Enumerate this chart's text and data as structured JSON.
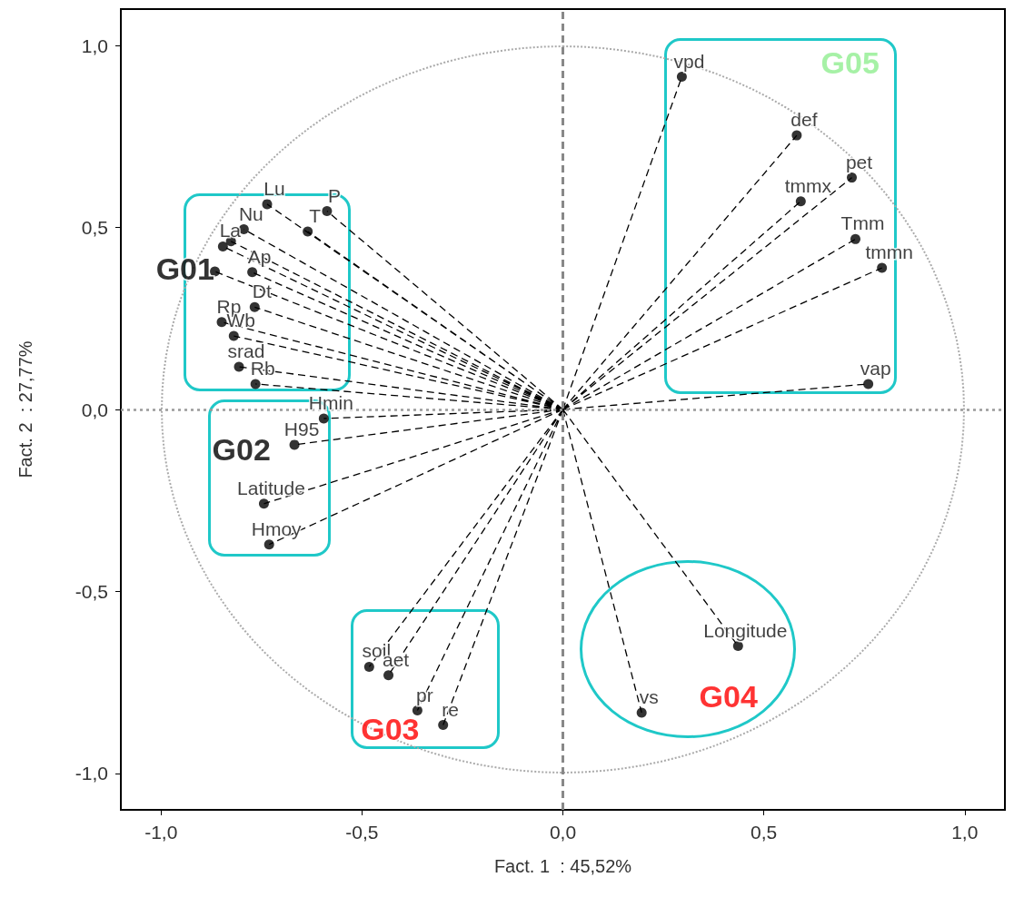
{
  "chart_data": {
    "type": "scatter",
    "xlabel": "Fact. 1  : 45,52%",
    "ylabel": "Fact. 2  : 27,77%",
    "xlim": [
      -1.1,
      1.1
    ],
    "ylim": [
      -1.1,
      1.1
    ],
    "xticks": [
      {
        "value": -1,
        "label": "-1,0"
      },
      {
        "value": -0.5,
        "label": "-0,5"
      },
      {
        "value": 0,
        "label": "0,0"
      },
      {
        "value": 0.5,
        "label": "0,5"
      },
      {
        "value": 1,
        "label": "1,0"
      }
    ],
    "yticks": [
      {
        "value": -1,
        "label": "-1,0"
      },
      {
        "value": -0.5,
        "label": "-0,5"
      },
      {
        "value": 0,
        "label": "0,0"
      },
      {
        "value": 0.5,
        "label": "0,5"
      },
      {
        "value": 1,
        "label": "1,0"
      }
    ],
    "grid": false,
    "ref_lines": [
      {
        "axis": "x",
        "value": 0,
        "color": "#888888",
        "line_style": "dashed"
      },
      {
        "axis": "y",
        "value": 0,
        "color": "#999999",
        "line_style": "dotted"
      }
    ],
    "series": [
      {
        "type": "line",
        "color": "#000000",
        "line_style": "dashed",
        "x": [
          0,
          -0.736,
          null,
          0,
          -0.587,
          null,
          0,
          -0.635,
          null,
          0,
          -0.794,
          null,
          0,
          -0.826,
          null,
          0,
          -0.846,
          null,
          0,
          -0.866,
          null,
          0,
          -0.773,
          null,
          0,
          -0.767,
          null,
          0,
          -0.849,
          null,
          0,
          -0.819,
          null,
          0,
          -0.806,
          null,
          0,
          -0.765,
          null,
          0,
          -0.595,
          null,
          0,
          -0.668,
          null,
          0,
          -0.744,
          null,
          0,
          -0.731,
          null,
          0,
          -0.482,
          null,
          0,
          -0.434,
          null,
          0,
          -0.362,
          null,
          0,
          -0.298,
          null,
          0,
          0.196,
          null,
          0,
          0.436,
          null,
          0,
          0.296,
          null,
          0,
          0.582,
          null,
          0,
          0.719,
          null,
          0,
          0.592,
          null,
          0,
          0.728,
          null,
          0,
          0.794,
          null,
          0,
          0.76
        ],
        "values": [
          0,
          0.564,
          null,
          0,
          0.545,
          null,
          0,
          0.489,
          null,
          0,
          0.495,
          null,
          0,
          0.462,
          null,
          0,
          0.448,
          null,
          0,
          0.379,
          null,
          0,
          0.377,
          null,
          0,
          0.281,
          null,
          0,
          0.24,
          null,
          0,
          0.202,
          null,
          0,
          0.117,
          null,
          0,
          0.07,
          null,
          0,
          -0.025,
          null,
          0,
          -0.097,
          null,
          0,
          -0.259,
          null,
          0,
          -0.371,
          null,
          0,
          -0.707,
          null,
          0,
          -0.73,
          null,
          0,
          -0.827,
          null,
          0,
          -0.867,
          null,
          0,
          -0.833,
          null,
          0,
          -0.65,
          null,
          0,
          0.914,
          null,
          0,
          0.753,
          null,
          0,
          0.637,
          null,
          0,
          0.572,
          null,
          0,
          0.468,
          null,
          0,
          0.389,
          null,
          0,
          0.07
        ]
      },
      {
        "color": "#000000",
        "marker": "circle",
        "x": [
          -0.736,
          -0.587,
          -0.635,
          -0.794,
          -0.826,
          -0.846,
          -0.866,
          -0.773,
          -0.767,
          -0.849,
          -0.819,
          -0.806,
          -0.765,
          -0.595,
          -0.668,
          -0.744,
          -0.731,
          -0.482,
          -0.434,
          -0.362,
          -0.298,
          0.196,
          0.436,
          0.296,
          0.582,
          0.719,
          0.592,
          0.728,
          0.794,
          0.76
        ],
        "values": [
          0.564,
          0.545,
          0.489,
          0.495,
          0.462,
          0.448,
          0.379,
          0.377,
          0.281,
          0.24,
          0.202,
          0.117,
          0.07,
          -0.025,
          -0.097,
          -0.259,
          -0.371,
          -0.707,
          -0.73,
          -0.827,
          -0.867,
          -0.833,
          -0.65,
          0.914,
          0.753,
          0.637,
          0.572,
          0.468,
          0.389,
          0.07
        ]
      }
    ],
    "annotations": [
      {
        "text": "Lu",
        "x": -0.736,
        "y": 0.564
      },
      {
        "text": "P",
        "x": -0.587,
        "y": 0.545
      },
      {
        "text": "T",
        "x": -0.635,
        "y": 0.489
      },
      {
        "text": "Nu",
        "x": -0.794,
        "y": 0.495
      },
      {
        "text": "La",
        "x": -0.846,
        "y": 0.448
      },
      {
        "text": "Ap",
        "x": -0.773,
        "y": 0.377
      },
      {
        "text": "Dt",
        "x": -0.767,
        "y": 0.281
      },
      {
        "text": "Rp",
        "x": -0.849,
        "y": 0.24
      },
      {
        "text": "Wb",
        "x": -0.819,
        "y": 0.202
      },
      {
        "text": "srad",
        "x": -0.806,
        "y": 0.117
      },
      {
        "text": "Rb",
        "x": -0.765,
        "y": 0.07
      },
      {
        "text": "Hmin",
        "x": -0.595,
        "y": -0.025
      },
      {
        "text": "H95",
        "x": -0.668,
        "y": -0.097
      },
      {
        "text": "Latitude",
        "x": -0.744,
        "y": -0.259
      },
      {
        "text": "Hmoy",
        "x": -0.731,
        "y": -0.371
      },
      {
        "text": "soil",
        "x": -0.482,
        "y": -0.707
      },
      {
        "text": "aet",
        "x": -0.434,
        "y": -0.73
      },
      {
        "text": "pr",
        "x": -0.362,
        "y": -0.827
      },
      {
        "text": "re",
        "x": -0.298,
        "y": -0.867
      },
      {
        "text": "vs",
        "x": 0.196,
        "y": -0.833
      },
      {
        "text": "Longitude",
        "x": 0.436,
        "y": -0.65
      },
      {
        "text": "vpd",
        "x": 0.296,
        "y": 0.914
      },
      {
        "text": "def",
        "x": 0.582,
        "y": 0.753
      },
      {
        "text": "pet",
        "x": 0.719,
        "y": 0.637
      },
      {
        "text": "tmmx",
        "x": 0.592,
        "y": 0.572
      },
      {
        "text": "Tmm",
        "x": 0.728,
        "y": 0.468
      },
      {
        "text": "tmmn",
        "x": 0.794,
        "y": 0.389
      },
      {
        "text": "vap",
        "x": 0.76,
        "y": 0.07
      },
      "G01",
      "G02",
      "G03",
      "G04",
      "G05"
    ]
  }
}
